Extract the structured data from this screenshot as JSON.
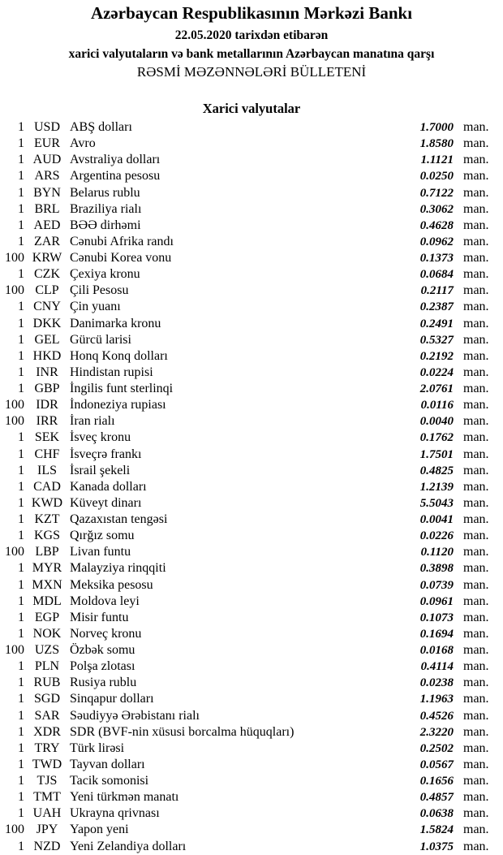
{
  "header": {
    "title": "Azərbaycan Respublikasının Mərkəzi Bankı",
    "date_line": "22.05.2020 tarixdən etibarən",
    "subtitle": "xarici valyutaların və bank metallarının Azərbaycan manatına qarşı",
    "bulletin_title": "RƏSMİ MƏZƏNNƏLƏRİ BÜLLETENİ"
  },
  "section_title": "Xarici valyutalar",
  "unit_label": "man.",
  "rates": [
    {
      "amount": "1",
      "code": "USD",
      "name": "ABŞ dolları",
      "value": "1.7000"
    },
    {
      "amount": "1",
      "code": "EUR",
      "name": "Avro",
      "value": "1.8580"
    },
    {
      "amount": "1",
      "code": "AUD",
      "name": "Avstraliya dolları",
      "value": "1.1121"
    },
    {
      "amount": "1",
      "code": "ARS",
      "name": "Argentina pesosu",
      "value": "0.0250"
    },
    {
      "amount": "1",
      "code": "BYN",
      "name": "Belarus rublu",
      "value": "0.7122"
    },
    {
      "amount": "1",
      "code": "BRL",
      "name": "Braziliya rialı",
      "value": "0.3062"
    },
    {
      "amount": "1",
      "code": "AED",
      "name": "BƏƏ dirhəmi",
      "value": "0.4628"
    },
    {
      "amount": "1",
      "code": "ZAR",
      "name": "Cənubi Afrika randı",
      "value": "0.0962"
    },
    {
      "amount": "100",
      "code": "KRW",
      "name": "Cənubi Korea vonu",
      "value": "0.1373"
    },
    {
      "amount": "1",
      "code": "CZK",
      "name": "Çexiya kronu",
      "value": "0.0684"
    },
    {
      "amount": "100",
      "code": "CLP",
      "name": "Çili Pesosu",
      "value": "0.2117"
    },
    {
      "amount": "1",
      "code": "CNY",
      "name": "Çin yuanı",
      "value": "0.2387"
    },
    {
      "amount": "1",
      "code": "DKK",
      "name": "Danimarka kronu",
      "value": "0.2491"
    },
    {
      "amount": "1",
      "code": "GEL",
      "name": "Gürcü larisi",
      "value": "0.5327"
    },
    {
      "amount": "1",
      "code": "HKD",
      "name": "Honq Konq dolları",
      "value": "0.2192"
    },
    {
      "amount": "1",
      "code": "INR",
      "name": "Hindistan rupisi",
      "value": "0.0224"
    },
    {
      "amount": "1",
      "code": "GBP",
      "name": "İngilis funt sterlinqi",
      "value": "2.0761"
    },
    {
      "amount": "100",
      "code": "IDR",
      "name": "İndoneziya rupiası",
      "value": "0.0116"
    },
    {
      "amount": "100",
      "code": "IRR",
      "name": "İran rialı",
      "value": "0.0040"
    },
    {
      "amount": "1",
      "code": "SEK",
      "name": "İsveç kronu",
      "value": "0.1762"
    },
    {
      "amount": "1",
      "code": "CHF",
      "name": "İsveçrə frankı",
      "value": "1.7501"
    },
    {
      "amount": "1",
      "code": "ILS",
      "name": "İsrail şekeli",
      "value": "0.4825"
    },
    {
      "amount": "1",
      "code": "CAD",
      "name": "Kanada dolları",
      "value": "1.2139"
    },
    {
      "amount": "1",
      "code": "KWD",
      "name": "Küveyt dinarı",
      "value": "5.5043"
    },
    {
      "amount": "1",
      "code": "KZT",
      "name": "Qazaxıstan tengəsi",
      "value": "0.0041"
    },
    {
      "amount": "1",
      "code": "KGS",
      "name": "Qırğız somu",
      "value": "0.0226"
    },
    {
      "amount": "100",
      "code": "LBP",
      "name": "Livan funtu",
      "value": "0.1120"
    },
    {
      "amount": "1",
      "code": "MYR",
      "name": "Malayziya rinqqiti",
      "value": "0.3898"
    },
    {
      "amount": "1",
      "code": "MXN",
      "name": "Meksika pesosu",
      "value": "0.0739"
    },
    {
      "amount": "1",
      "code": "MDL",
      "name": "Moldova leyi",
      "value": "0.0961"
    },
    {
      "amount": "1",
      "code": "EGP",
      "name": "Misir funtu",
      "value": "0.1073"
    },
    {
      "amount": "1",
      "code": "NOK",
      "name": "Norveç kronu",
      "value": "0.1694"
    },
    {
      "amount": "100",
      "code": "UZS",
      "name": "Özbək somu",
      "value": "0.0168"
    },
    {
      "amount": "1",
      "code": "PLN",
      "name": "Polşa zlotası",
      "value": "0.4114"
    },
    {
      "amount": "1",
      "code": "RUB",
      "name": "Rusiya rublu",
      "value": "0.0238"
    },
    {
      "amount": "1",
      "code": "SGD",
      "name": "Sinqapur dolları",
      "value": "1.1963"
    },
    {
      "amount": "1",
      "code": "SAR",
      "name": "Səudiyyə Ərəbistanı rialı",
      "value": "0.4526"
    },
    {
      "amount": "1",
      "code": "XDR",
      "name": "SDR (BVF-nin xüsusi borcalma hüquqları)",
      "value": "2.3220"
    },
    {
      "amount": "1",
      "code": "TRY",
      "name": "Türk lirəsi",
      "value": "0.2502"
    },
    {
      "amount": "1",
      "code": "TWD",
      "name": "Tayvan dolları",
      "value": "0.0567"
    },
    {
      "amount": "1",
      "code": "TJS",
      "name": "Tacik somonisi",
      "value": "0.1656"
    },
    {
      "amount": "1",
      "code": "TMT",
      "name": "Yeni türkmən manatı",
      "value": "0.4857"
    },
    {
      "amount": "1",
      "code": "UAH",
      "name": "Ukrayna qrivnası",
      "value": "0.0638"
    },
    {
      "amount": "100",
      "code": "JPY",
      "name": "Yapon yeni",
      "value": "1.5824"
    },
    {
      "amount": "1",
      "code": "NZD",
      "name": "Yeni Zelandiya dolları",
      "value": "1.0375"
    }
  ]
}
